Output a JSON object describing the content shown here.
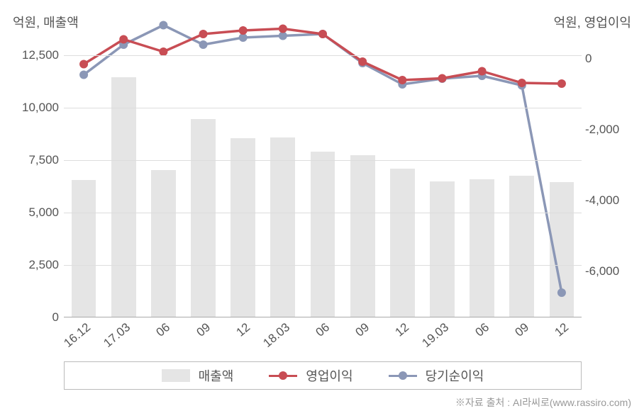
{
  "chart": {
    "type": "combo-bar-line-dual-axis",
    "background_color": "#ffffff",
    "grid_color": "#dddddd",
    "axis_color": "#aaaaaa",
    "text_color": "#555555",
    "label_fontsize": 18,
    "tick_fontsize": 17,
    "y_left": {
      "label": "억원, 매출액",
      "min": 0,
      "max": 13500,
      "ticks": [
        0,
        2500,
        5000,
        7500,
        10000,
        12500
      ],
      "tick_labels": [
        "0",
        "2,500",
        "5,000",
        "7,500",
        "10,000",
        "12,500"
      ]
    },
    "y_right": {
      "label": "억원, 영업이익",
      "min": -7300,
      "max": 700,
      "ticks": [
        0,
        -2000,
        -4000,
        -6000
      ],
      "tick_labels": [
        "0",
        "-2,000",
        "-4,000",
        "-6,000"
      ]
    },
    "x": {
      "categories": [
        "16.12",
        "17.03",
        "06",
        "09",
        "12",
        "18.03",
        "06",
        "09",
        "12",
        "19.03",
        "06",
        "09",
        "12"
      ],
      "rotation": -40
    },
    "bars": {
      "label": "매출액",
      "color": "#e5e5e5",
      "width_frac": 0.62,
      "values": [
        6500,
        11400,
        7000,
        9400,
        8500,
        8550,
        7850,
        7700,
        7050,
        6450,
        6550,
        6700,
        6400
      ]
    },
    "line_red": {
      "label": "영업이익",
      "color": "#c84d54",
      "line_width": 3.5,
      "marker_radius": 6,
      "values": [
        -150,
        550,
        200,
        700,
        800,
        850,
        700,
        -80,
        -600,
        -550,
        -350,
        -680,
        -700
      ]
    },
    "line_blue": {
      "label": "당기순이익",
      "color": "#8b97b6",
      "line_width": 3.5,
      "marker_radius": 6,
      "values": [
        -450,
        400,
        950,
        400,
        600,
        650,
        700,
        -120,
        -720,
        -560,
        -480,
        -750,
        -6600
      ]
    },
    "legend": {
      "border_color": "#bbbbbb",
      "items": [
        "매출액",
        "영업이익",
        "당기순이익"
      ]
    },
    "source": "※자료 출처 : AI라씨로(www.rassiro.com)"
  }
}
